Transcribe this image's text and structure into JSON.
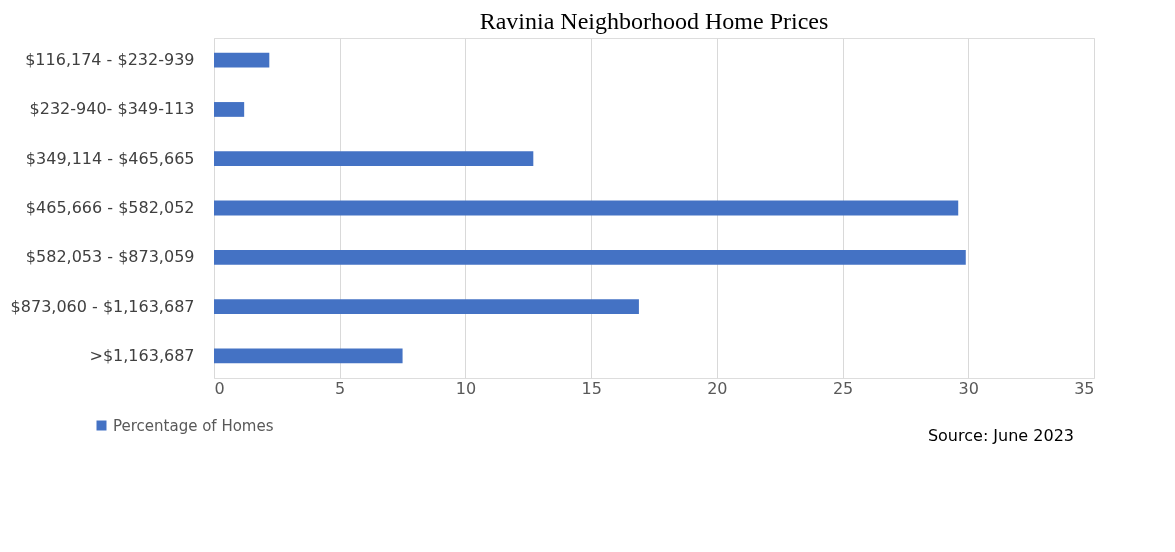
{
  "chart_data": {
    "type": "bar",
    "orientation": "horizontal",
    "title": "Ravinia Neighborhood Home Prices",
    "categories": [
      "$116,174 - $232-939",
      "$232-940- $349-113",
      "$349,114 - $465,665",
      "$465,666 - $582,052",
      "$582,053 - $873,059",
      "$873,060 - $1,163,687",
      ">$1,163,687"
    ],
    "series": [
      {
        "name": "Percentage of Homes",
        "color": "#4472c4",
        "values": [
          2.2,
          1.2,
          12.7,
          29.6,
          29.9,
          16.9,
          7.5
        ]
      }
    ],
    "xlim": [
      0,
      35
    ],
    "xticks": [
      0,
      5,
      10,
      15,
      20,
      25,
      30,
      35
    ],
    "grid": "x",
    "legend": "bottom left",
    "annotations": [
      "Source: June 2023"
    ]
  }
}
